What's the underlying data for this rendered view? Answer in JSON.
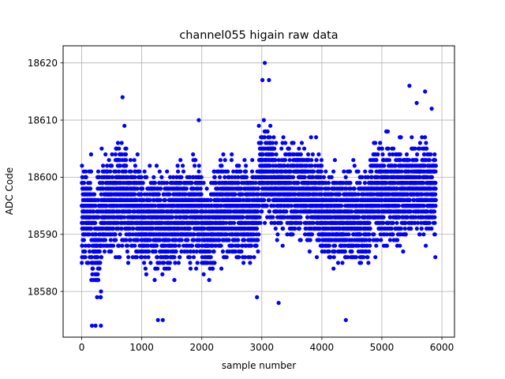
{
  "chart_data": {
    "type": "scatter",
    "title": "channel055 higain raw data",
    "xlabel": "sample number",
    "ylabel": "ADC Code",
    "xlim": [
      -310,
      6210
    ],
    "ylim": [
      18572,
      18623
    ],
    "xticks": [
      0,
      1000,
      2000,
      3000,
      4000,
      5000,
      6000
    ],
    "yticks": [
      18580,
      18590,
      18600,
      18610,
      18620
    ],
    "grid": true,
    "marker_color": "#0000ff",
    "n_points": 6000,
    "value_range": {
      "min": 18574,
      "max": 18620
    },
    "segments": [
      {
        "x_start": 0,
        "x_end": 160,
        "mean": 18593,
        "spread": 6
      },
      {
        "x_start": 160,
        "x_end": 330,
        "mean": 18590,
        "spread": 7
      },
      {
        "x_start": 330,
        "x_end": 560,
        "mean": 18595,
        "spread": 6
      },
      {
        "x_start": 560,
        "x_end": 740,
        "mean": 18597,
        "spread": 7
      },
      {
        "x_start": 740,
        "x_end": 1000,
        "mean": 18595,
        "spread": 6
      },
      {
        "x_start": 1000,
        "x_end": 1560,
        "mean": 18592,
        "spread": 6
      },
      {
        "x_start": 1560,
        "x_end": 2000,
        "mean": 18594,
        "spread": 6
      },
      {
        "x_start": 2000,
        "x_end": 2200,
        "mean": 18591,
        "spread": 6
      },
      {
        "x_start": 2200,
        "x_end": 2950,
        "mean": 18594,
        "spread": 6
      },
      {
        "x_start": 2950,
        "x_end": 3200,
        "mean": 18601,
        "spread": 6
      },
      {
        "x_start": 3200,
        "x_end": 3700,
        "mean": 18598,
        "spread": 6
      },
      {
        "x_start": 3700,
        "x_end": 4000,
        "mean": 18596,
        "spread": 6
      },
      {
        "x_start": 4000,
        "x_end": 4800,
        "mean": 18593,
        "spread": 6
      },
      {
        "x_start": 4800,
        "x_end": 5400,
        "mean": 18597,
        "spread": 6
      },
      {
        "x_start": 5400,
        "x_end": 5900,
        "mean": 18598,
        "spread": 6
      }
    ],
    "notable_points": [
      {
        "x": 3050,
        "y": 18620
      },
      {
        "x": 3010,
        "y": 18617
      },
      {
        "x": 3120,
        "y": 18617
      },
      {
        "x": 5460,
        "y": 18616
      },
      {
        "x": 5720,
        "y": 18615
      },
      {
        "x": 680,
        "y": 18614
      },
      {
        "x": 5580,
        "y": 18613
      },
      {
        "x": 5830,
        "y": 18612
      },
      {
        "x": 1950,
        "y": 18610
      },
      {
        "x": 3280,
        "y": 18578
      },
      {
        "x": 170,
        "y": 18574
      },
      {
        "x": 230,
        "y": 18574
      },
      {
        "x": 320,
        "y": 18574
      },
      {
        "x": 4400,
        "y": 18575
      },
      {
        "x": 1270,
        "y": 18575
      },
      {
        "x": 1350,
        "y": 18575
      },
      {
        "x": 2920,
        "y": 18579
      },
      {
        "x": 5890,
        "y": 18586
      }
    ]
  }
}
